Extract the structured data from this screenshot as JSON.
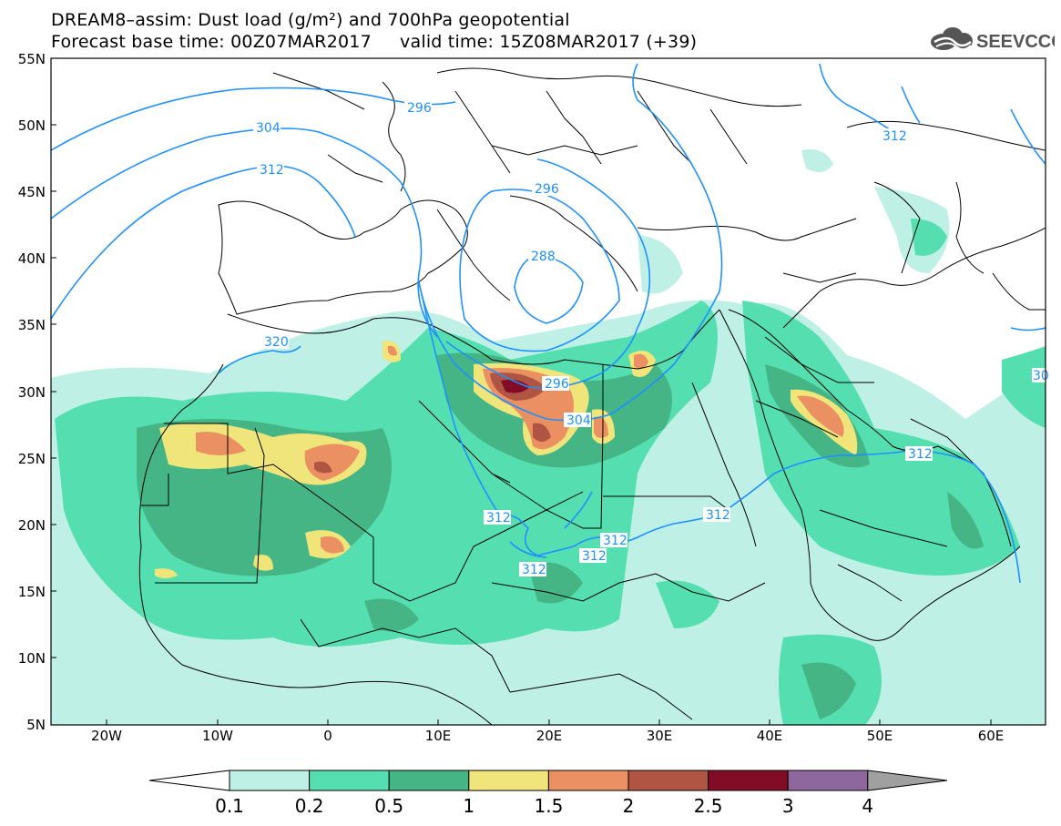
{
  "header": {
    "line1": "DREAM8–assim: Dust load (g/m²) and 700hPa geopotential",
    "line2": "Forecast base time: 00Z07MAR2017     valid time: 15Z08MAR2017 (+39)"
  },
  "logo": {
    "text": "SEEVCCC",
    "icon": "cloud-icon"
  },
  "map": {
    "lat_labels": [
      "55N",
      "50N",
      "45N",
      "40N",
      "35N",
      "30N",
      "25N",
      "20N",
      "15N",
      "10N",
      "5N"
    ],
    "lon_labels": [
      "20W",
      "10W",
      "0",
      "10E",
      "20E",
      "30E",
      "40E",
      "50E",
      "60E"
    ],
    "contour_labels": [
      "296",
      "304",
      "312",
      "296",
      "288",
      "320",
      "296",
      "304",
      "312",
      "312",
      "312",
      "312",
      "312",
      "312",
      "312",
      "30"
    ],
    "contour_color": "#1e90ff"
  },
  "colorbar": {
    "ticks": [
      "0.1",
      "0.2",
      "0.5",
      "1",
      "1.5",
      "2",
      "2.5",
      "3",
      "4"
    ],
    "colors": [
      "#bff0e6",
      "#55dfb0",
      "#45b585",
      "#f0e57a",
      "#ea9062",
      "#b05443",
      "#820b26",
      "#8e679e",
      "#a0a0a0"
    ]
  }
}
